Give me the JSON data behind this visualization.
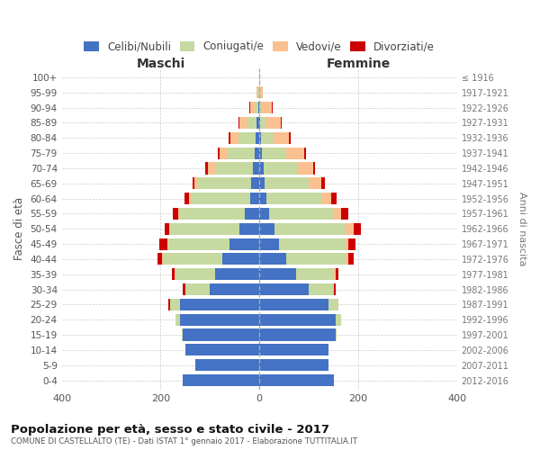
{
  "age_groups": [
    "0-4",
    "5-9",
    "10-14",
    "15-19",
    "20-24",
    "25-29",
    "30-34",
    "35-39",
    "40-44",
    "45-49",
    "50-54",
    "55-59",
    "60-64",
    "65-69",
    "70-74",
    "75-79",
    "80-84",
    "85-89",
    "90-94",
    "95-99",
    "100+"
  ],
  "birth_years": [
    "2012-2016",
    "2007-2011",
    "2002-2006",
    "1997-2001",
    "1992-1996",
    "1987-1991",
    "1982-1986",
    "1977-1981",
    "1972-1976",
    "1967-1971",
    "1962-1966",
    "1957-1961",
    "1952-1956",
    "1947-1951",
    "1942-1946",
    "1937-1941",
    "1932-1936",
    "1927-1931",
    "1922-1926",
    "1917-1921",
    "≤ 1916"
  ],
  "maschi": {
    "celibi": [
      155,
      130,
      150,
      155,
      160,
      160,
      100,
      90,
      75,
      60,
      40,
      30,
      18,
      16,
      14,
      10,
      8,
      5,
      2,
      1,
      0
    ],
    "coniugati": [
      0,
      0,
      0,
      2,
      10,
      20,
      50,
      80,
      120,
      125,
      140,
      130,
      120,
      110,
      75,
      55,
      35,
      20,
      8,
      3,
      1
    ],
    "vedovi": [
      0,
      0,
      0,
      0,
      0,
      0,
      0,
      2,
      2,
      2,
      2,
      5,
      5,
      5,
      15,
      15,
      15,
      15,
      8,
      2,
      0
    ],
    "divorziati": [
      0,
      0,
      0,
      0,
      0,
      5,
      5,
      5,
      10,
      15,
      10,
      10,
      8,
      5,
      5,
      5,
      5,
      2,
      2,
      0,
      0
    ]
  },
  "femmine": {
    "nubili": [
      150,
      140,
      140,
      155,
      155,
      140,
      100,
      75,
      55,
      40,
      30,
      20,
      15,
      10,
      8,
      5,
      4,
      2,
      0,
      0,
      0
    ],
    "coniugate": [
      0,
      0,
      0,
      2,
      10,
      20,
      50,
      75,
      120,
      135,
      145,
      130,
      110,
      90,
      70,
      50,
      25,
      12,
      5,
      2,
      0
    ],
    "vedove": [
      0,
      0,
      0,
      0,
      0,
      0,
      0,
      5,
      5,
      5,
      15,
      15,
      20,
      25,
      30,
      35,
      30,
      30,
      20,
      5,
      1
    ],
    "divorziate": [
      0,
      0,
      0,
      0,
      0,
      0,
      5,
      5,
      10,
      15,
      15,
      15,
      12,
      8,
      5,
      5,
      5,
      2,
      2,
      0,
      0
    ]
  },
  "colors": {
    "celibi": "#4472C4",
    "coniugati": "#C5D9A0",
    "vedovi": "#FAC090",
    "divorziati": "#CC0000"
  },
  "xlim": 400,
  "title": "Popolazione per età, sesso e stato civile - 2017",
  "subtitle": "COMUNE DI CASTELLALTO (TE) - Dati ISTAT 1° gennaio 2017 - Elaborazione TUTTITALIA.IT",
  "ylabel_left": "Fasce di età",
  "ylabel_right": "Anni di nascita",
  "xlabel_left": "Maschi",
  "xlabel_right": "Femmine",
  "bg_color": "#FFFFFF",
  "grid_color": "#CCCCCC"
}
